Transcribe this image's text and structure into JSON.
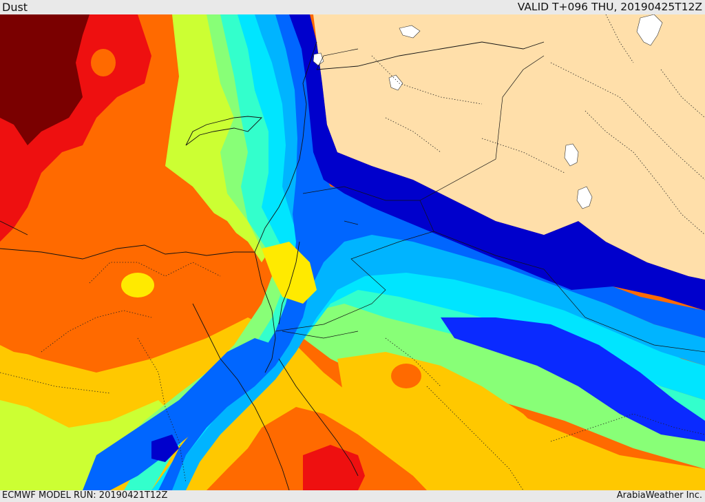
{
  "header": {
    "field_name": "Dust",
    "valid_time": "VALID T+096 THU, 20190425T12Z"
  },
  "footer": {
    "model_run": "ECMWF MODEL RUN: 20190421T12Z",
    "credit": "ArabiaWeather Inc."
  },
  "palette": {
    "dark_red": "#7a0000",
    "red": "#ee1010",
    "dark_orange": "#ff6a00",
    "orange": "#ffa500",
    "yellow_orange": "#ffc800",
    "yellow": "#ffea00",
    "lime": "#ccff33",
    "light_green": "#88ff77",
    "aquamarine": "#33ffcc",
    "cyan": "#00e5ff",
    "sky_blue": "#00b4ff",
    "mid_blue": "#0066ff",
    "blue": "#0a2aff",
    "dark_blue": "#0000cc",
    "land_masked": "#ffdfaa",
    "lakes": "#ffffff"
  }
}
